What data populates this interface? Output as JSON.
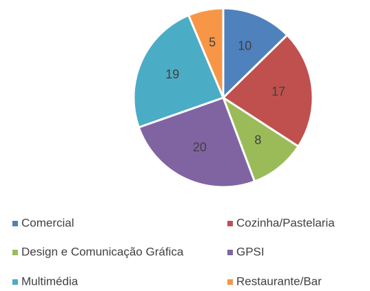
{
  "chart_data": {
    "type": "pie",
    "categories": [
      "Comercial",
      "Cozinha/Pastelaria",
      "Design e Comunicação Gráfica",
      "GPSI",
      "Multimédia",
      "Restaurante/Bar"
    ],
    "values": [
      10,
      17,
      8,
      20,
      19,
      5
    ],
    "colors": [
      "#4f81bd",
      "#c0504d",
      "#9bbb59",
      "#8064a2",
      "#4bacc6",
      "#f79646"
    ],
    "legend": "bottom"
  }
}
